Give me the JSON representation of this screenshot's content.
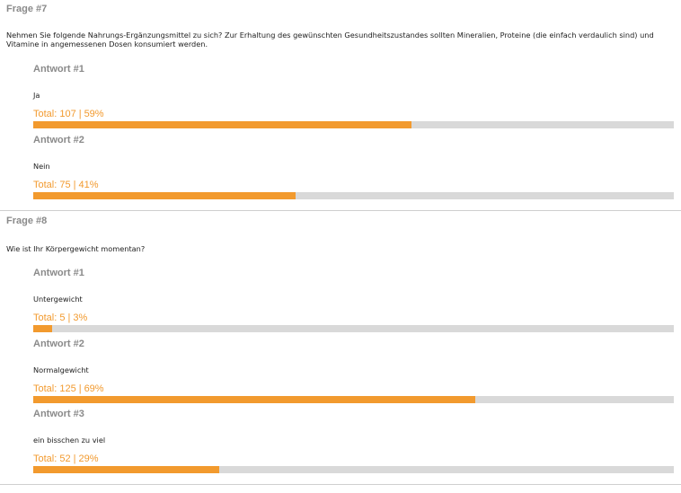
{
  "colors": {
    "accent": "#f29a2e",
    "track": "#d9d9d9",
    "heading": "#8a8a8a",
    "text": "#222222"
  },
  "questions": [
    {
      "title": "Frage #7",
      "text": "Nehmen Sie folgende Nahrungs-Ergänzungsmittel zu sich? Zur Erhaltung des gewünschten Gesundheitszustandes sollten Mineralien, Proteine (die einfach verdaulich sind) und Vitamine in angemessenen Dosen konsumiert werden.",
      "answers": [
        {
          "title": "Antwort #1",
          "text": "Ja",
          "total_label": "Total: 107",
          "percent_label": "59%",
          "percent": 59
        },
        {
          "title": "Antwort #2",
          "text": "Nein",
          "total_label": "Total: 75",
          "percent_label": "41%",
          "percent": 41
        }
      ]
    },
    {
      "title": "Frage #8",
      "text": "Wie ist Ihr Körpergewicht momentan?",
      "answers": [
        {
          "title": "Antwort #1",
          "text": "Untergewicht",
          "total_label": "Total: 5",
          "percent_label": "3%",
          "percent": 3
        },
        {
          "title": "Antwort #2",
          "text": "Normalgewicht",
          "total_label": "Total: 125",
          "percent_label": "69%",
          "percent": 69
        },
        {
          "title": "Antwort #3",
          "text": "ein bisschen zu viel",
          "total_label": "Total: 52",
          "percent_label": "29%",
          "percent": 29
        }
      ]
    }
  ]
}
